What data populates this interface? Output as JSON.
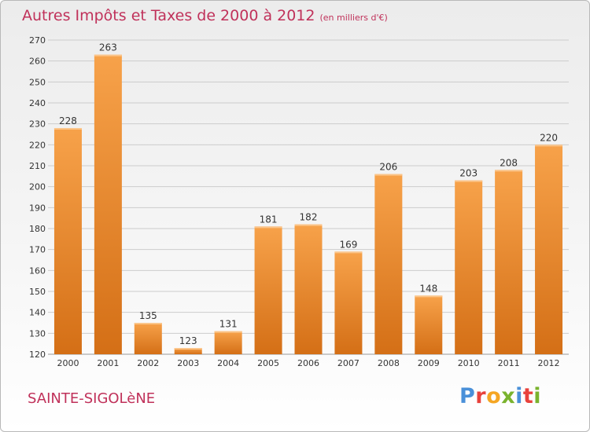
{
  "header": {
    "title": "Autres Impôts et Taxes de 2000 à 2012",
    "unit": "(en milliers d'€)"
  },
  "footer": {
    "city": "SAINTE-SIGOLèNE",
    "logo_text": "Proxiti",
    "logo_colors": [
      "#4a90d9",
      "#e8423c",
      "#f5a623",
      "#7ab32e",
      "#4a90d9",
      "#e8423c",
      "#7ab32e"
    ]
  },
  "colors": {
    "bar_light": "#f7a24a",
    "bar_dark": "#d46f16",
    "title": "#c0315a",
    "grid": "#cccccc"
  },
  "chart_data": {
    "type": "bar",
    "categories": [
      "2000",
      "2001",
      "2002",
      "2003",
      "2004",
      "2005",
      "2006",
      "2007",
      "2008",
      "2009",
      "2010",
      "2011",
      "2012"
    ],
    "values": [
      228,
      263,
      135,
      123,
      131,
      181,
      182,
      169,
      206,
      148,
      203,
      208,
      220
    ],
    "yticks": [
      120,
      130,
      140,
      150,
      160,
      170,
      180,
      190,
      200,
      210,
      220,
      230,
      240,
      250,
      260,
      270
    ],
    "ylim": [
      120,
      270
    ],
    "grid": true
  }
}
